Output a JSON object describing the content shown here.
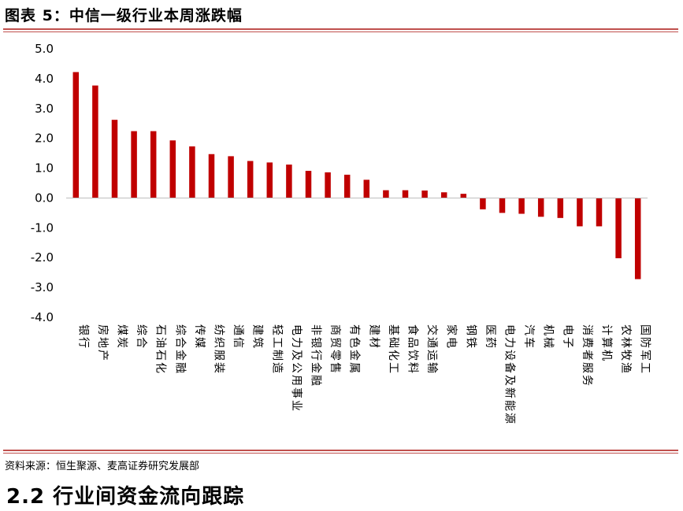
{
  "figure_title": "图表 5：中信一级行业本周涨跌幅",
  "source_note": "资料来源：恒生聚源、麦高证券研究发展部",
  "section_heading": "2.2 行业间资金流向跟踪",
  "colors": {
    "bar": "#c00000",
    "rule": "#c0504d"
  },
  "chart_data": {
    "type": "bar",
    "title": "",
    "xlabel": "",
    "ylabel": "",
    "ylim": [
      -4.0,
      5.0
    ],
    "yticks": [
      "5.0",
      "4.0",
      "3.0",
      "2.0",
      "1.0",
      "0.0",
      "-1.0",
      "-2.0",
      "-3.0",
      "-4.0"
    ],
    "grid": false,
    "legend": "none",
    "categories": [
      "银行",
      "房地产",
      "煤炭",
      "综合",
      "石油石化",
      "综合金融",
      "传媒",
      "纺织服装",
      "通信",
      "建筑",
      "轻工制造",
      "电力及公用事业",
      "非银行金融",
      "商贸零售",
      "有色金属",
      "建材",
      "基础化工",
      "食品饮料",
      "交通运输",
      "家电",
      "钢铁",
      "医药",
      "电力设备及新能源",
      "汽车",
      "机械",
      "电子",
      "消费者服务",
      "计算机",
      "农林牧渔",
      "国防军工"
    ],
    "values": [
      4.22,
      3.77,
      2.62,
      2.24,
      2.24,
      1.93,
      1.73,
      1.47,
      1.4,
      1.24,
      1.19,
      1.12,
      0.91,
      0.86,
      0.78,
      0.61,
      0.26,
      0.26,
      0.25,
      0.19,
      0.14,
      -0.38,
      -0.5,
      -0.53,
      -0.63,
      -0.67,
      -0.95,
      -0.95,
      -2.02,
      -2.72
    ]
  }
}
